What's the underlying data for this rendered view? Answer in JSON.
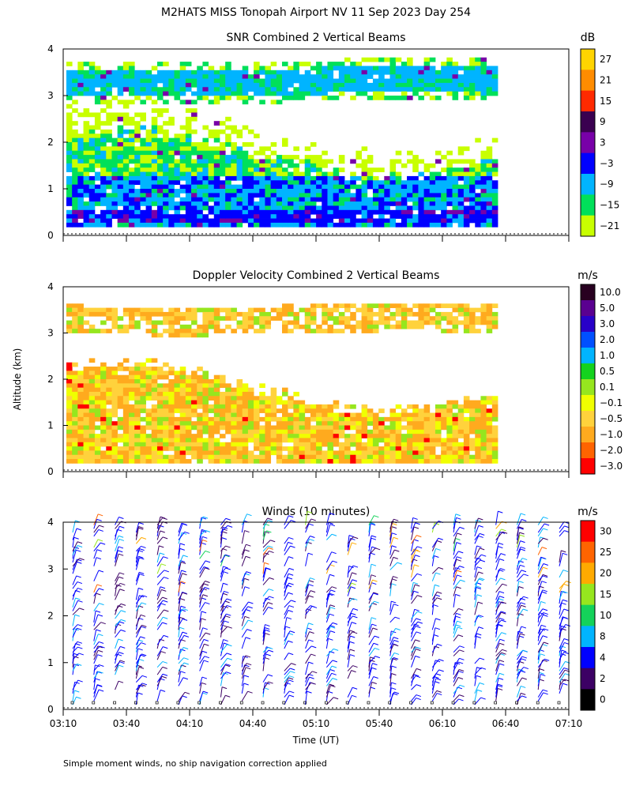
{
  "figure": {
    "title": "M2HATS MISS Tonopah Airport NV  11 Sep 2023 Day 254",
    "ylabel": "Altitude (km)",
    "xlabel": "Time (UT)",
    "footnote": "Simple moment winds, no ship navigation correction applied"
  },
  "chart_data": [
    {
      "type": "heatmap",
      "title": "SNR Combined 2 Vertical Beams",
      "x_ticks": [
        "03:10",
        "03:40",
        "04:10",
        "04:40",
        "05:10",
        "05:40",
        "06:10",
        "06:40",
        "07:10"
      ],
      "y_ticks": [
        "0",
        "1",
        "2",
        "3",
        "4"
      ],
      "ylim": [
        0,
        4
      ],
      "colorbar": {
        "units": "dB",
        "labels": [
          "27",
          "21",
          "15",
          "9",
          "3",
          "−3",
          "−9",
          "−15",
          "−21"
        ],
        "colors": [
          "#ffd400",
          "#ff8c00",
          "#ff2a00",
          "#3a0050",
          "#7800a8",
          "#0000ff",
          "#00b4ff",
          "#00e05a",
          "#c8ff00"
        ]
      },
      "layers": [
        {
          "name": "upper layer",
          "base_km": 3.05,
          "top_km": 3.55,
          "value_db": -12
        },
        {
          "name": "boundary layer",
          "base_km": 0.2,
          "top_km": 2.1,
          "value_db": -6
        },
        {
          "name": "strong return",
          "base_km": 0.4,
          "top_km": 1.2,
          "value_db": 0
        }
      ]
    },
    {
      "type": "heatmap",
      "title": "Doppler Velocity Combined 2 Vertical Beams",
      "x_ticks": [
        "03:10",
        "03:40",
        "04:10",
        "04:40",
        "05:10",
        "05:40",
        "06:10",
        "06:40",
        "07:10"
      ],
      "y_ticks": [
        "0",
        "1",
        "2",
        "3",
        "4"
      ],
      "ylim": [
        0,
        4
      ],
      "colorbar": {
        "units": "m/s",
        "labels": [
          "10.0",
          "5.0",
          "3.0",
          "2.0",
          "1.0",
          "0.5",
          "0.1",
          "−0.1",
          "−0.5",
          "−1.0",
          "−2.0",
          "−3.0"
        ],
        "colors": [
          "#280020",
          "#5a0090",
          "#2800c8",
          "#0050ff",
          "#00b4ff",
          "#14d21e",
          "#96e61e",
          "#f0ff00",
          "#ffd23c",
          "#ffaa1e",
          "#ff6400",
          "#ff0000"
        ]
      },
      "layers": [
        {
          "name": "upper layer",
          "base_km": 3.05,
          "top_km": 3.55,
          "value_ms": -0.7
        },
        {
          "name": "boundary layer",
          "base_km": 0.2,
          "top_km": 2.1,
          "value_ms": -0.8
        }
      ]
    },
    {
      "type": "wind_barbs",
      "title": "Winds (10 minutes)",
      "x_ticks": [
        "03:10",
        "03:40",
        "04:10",
        "04:40",
        "05:10",
        "05:40",
        "06:10",
        "06:40",
        "07:10"
      ],
      "y_ticks": [
        "0",
        "1",
        "2",
        "3",
        "4"
      ],
      "ylim": [
        0,
        4
      ],
      "colorbar": {
        "units": "m/s",
        "labels": [
          "30",
          "25",
          "20",
          "15",
          "10",
          "8",
          "4",
          "2",
          "0"
        ],
        "colors": [
          "#ff0000",
          "#ff6400",
          "#ffaa00",
          "#96e61e",
          "#14d25a",
          "#00b4ff",
          "#0000ff",
          "#3c0064",
          "#000000"
        ]
      },
      "profile_count": 24,
      "dominant_speed_ms": 6
    }
  ]
}
